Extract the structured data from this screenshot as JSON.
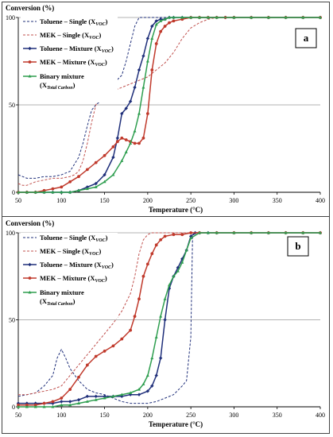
{
  "chart_data": [
    {
      "type": "line",
      "panel_label": "a",
      "ylabel": "Conversion (%)",
      "xlabel": "Temperature (°C)",
      "xlim": [
        50,
        400
      ],
      "ylim": [
        0,
        100
      ],
      "x_ticks": [
        "50",
        "100",
        "150",
        "200",
        "250",
        "300",
        "350",
        "400"
      ],
      "y_ticks": [
        "0",
        "50",
        "100"
      ],
      "grid": "horizontal at 50 and 100",
      "legend_position": "left, inside",
      "series": [
        {
          "name": "Toluene – Single (X_VOC)",
          "main": "Toluene – Single (X",
          "sub": "VOC",
          "color": "#1f2f7a",
          "dashed": true,
          "marker": false,
          "x": [
            50,
            55,
            60,
            70,
            80,
            90,
            100,
            110,
            120,
            125,
            130,
            135,
            140,
            145,
            150,
            155,
            160,
            170,
            175,
            180,
            185,
            190,
            195,
            200,
            220,
            250,
            300,
            350,
            400
          ],
          "y": [
            10,
            9,
            8,
            8,
            9,
            9,
            10,
            12,
            20,
            28,
            38,
            47,
            50,
            52,
            55,
            59,
            62,
            67,
            75,
            85,
            95,
            100,
            100,
            100,
            100,
            100,
            100,
            100,
            100
          ]
        },
        {
          "name": "MEK – Single (X_VOC)",
          "main": "MEK – Single (X",
          "sub": "VOC",
          "color": "#c0504d",
          "dashed": true,
          "marker": false,
          "x": [
            50,
            55,
            60,
            70,
            80,
            90,
            100,
            110,
            115,
            120,
            125,
            130,
            135,
            140,
            145,
            150,
            160,
            170,
            180,
            190,
            200,
            210,
            220,
            230,
            240,
            250,
            260,
            270,
            280,
            300,
            350,
            400
          ],
          "y": [
            5,
            4,
            4,
            6,
            7,
            8,
            8,
            9,
            10,
            12,
            18,
            28,
            40,
            50,
            55,
            56,
            58,
            60,
            62,
            64,
            66,
            70,
            74,
            80,
            88,
            94,
            97,
            99,
            100,
            100,
            100,
            100
          ]
        },
        {
          "name": "Toluene – Mixture (X_VOC)",
          "main": "Toluene – Mixture (X",
          "sub": "VOC",
          "color": "#1f2f7a",
          "dashed": false,
          "marker": "diamond",
          "x": [
            50,
            60,
            70,
            80,
            90,
            100,
            110,
            120,
            130,
            140,
            150,
            160,
            165,
            170,
            175,
            180,
            185,
            190,
            195,
            200,
            205,
            210,
            215,
            220,
            225,
            230,
            240,
            250,
            260,
            270,
            280,
            290,
            300,
            320,
            340,
            360,
            380,
            400
          ],
          "y": [
            0,
            0,
            0,
            0,
            0,
            0,
            0,
            1,
            3,
            5,
            10,
            20,
            31,
            45,
            48,
            52,
            60,
            70,
            78,
            88,
            95,
            98,
            99,
            99,
            100,
            100,
            100,
            100,
            100,
            100,
            100,
            100,
            100,
            100,
            100,
            100,
            100,
            100
          ]
        },
        {
          "name": "MEK – Mixture (X_VOC)",
          "main": "MEK – Mixture (X",
          "sub": "VOC",
          "color": "#c0392b",
          "dashed": false,
          "marker": "circle",
          "x": [
            50,
            60,
            70,
            80,
            90,
            100,
            110,
            120,
            130,
            140,
            150,
            160,
            165,
            170,
            175,
            180,
            185,
            190,
            195,
            200,
            205,
            210,
            215,
            220,
            225,
            230,
            240,
            250,
            260,
            270,
            280,
            290,
            300,
            320,
            340,
            360,
            380,
            400
          ],
          "y": [
            0,
            0,
            0,
            1,
            2,
            3,
            6,
            9,
            13,
            17,
            21,
            26,
            29,
            31,
            30,
            29,
            28,
            28,
            31,
            45,
            70,
            85,
            92,
            95,
            97,
            98,
            99,
            100,
            100,
            100,
            100,
            100,
            100,
            100,
            100,
            100,
            100,
            100
          ]
        },
        {
          "name": "Binary mixture (X_Total Carbon)",
          "main": "Binary mixture",
          "main2": "(X",
          "sub": "Total Carbon",
          "color": "#2e9e4f",
          "dashed": false,
          "marker": "triangle",
          "x": [
            50,
            60,
            70,
            80,
            90,
            100,
            110,
            120,
            130,
            140,
            150,
            160,
            170,
            175,
            180,
            185,
            190,
            195,
            200,
            205,
            210,
            215,
            220,
            225,
            230,
            240,
            250,
            260,
            270,
            280,
            300,
            320,
            340,
            360,
            380,
            400
          ],
          "y": [
            0,
            0,
            0,
            0,
            0,
            0,
            0,
            1,
            2,
            3,
            6,
            10,
            18,
            23,
            28,
            35,
            45,
            60,
            75,
            88,
            96,
            98,
            99,
            100,
            100,
            100,
            100,
            100,
            100,
            100,
            100,
            100,
            100,
            100,
            100,
            100
          ]
        }
      ]
    },
    {
      "type": "line",
      "panel_label": "b",
      "ylabel": "Conversion (%)",
      "xlabel": "Temperature (°C)",
      "xlim": [
        50,
        400
      ],
      "ylim": [
        0,
        100
      ],
      "x_ticks": [
        "50",
        "100",
        "150",
        "200",
        "250",
        "300",
        "350",
        "400"
      ],
      "y_ticks": [
        "0",
        "50",
        "100"
      ],
      "grid": "horizontal at 50 and 100",
      "legend_position": "left, inside",
      "series": [
        {
          "name": "Toluene – Single (X_VOC)",
          "main": "Toluene – Single (X",
          "sub": "VOC",
          "color": "#1f2f7a",
          "dashed": true,
          "marker": false,
          "x": [
            50,
            60,
            70,
            80,
            90,
            95,
            100,
            105,
            110,
            120,
            130,
            140,
            150,
            160,
            170,
            180,
            190,
            200,
            210,
            220,
            230,
            240,
            245,
            250,
            252,
            255,
            260,
            280,
            300,
            350,
            400
          ],
          "y": [
            6,
            7,
            8,
            12,
            18,
            28,
            33,
            28,
            22,
            15,
            10,
            8,
            7,
            5,
            3,
            2,
            2,
            2,
            3,
            5,
            7,
            12,
            15,
            40,
            98,
            100,
            100,
            100,
            100,
            100,
            100
          ]
        },
        {
          "name": "MEK – Single (X_VOC)",
          "main": "MEK – Single (X",
          "sub": "VOC",
          "color": "#c0504d",
          "dashed": true,
          "marker": false,
          "x": [
            50,
            60,
            70,
            80,
            90,
            100,
            110,
            120,
            130,
            140,
            150,
            160,
            170,
            180,
            185,
            190,
            195,
            200,
            205,
            210,
            220,
            230,
            250,
            300,
            350,
            400
          ],
          "y": [
            7,
            7,
            8,
            9,
            10,
            12,
            18,
            24,
            30,
            36,
            42,
            48,
            55,
            65,
            75,
            88,
            96,
            99,
            100,
            100,
            100,
            100,
            100,
            100,
            100,
            100
          ]
        },
        {
          "name": "Toluene – Mixture (X_VOC)",
          "main": "Toluene – Mixture (X",
          "sub": "VOC",
          "color": "#1f2f7a",
          "dashed": false,
          "marker": "diamond",
          "x": [
            50,
            60,
            70,
            80,
            90,
            100,
            110,
            120,
            130,
            140,
            150,
            160,
            170,
            180,
            190,
            200,
            205,
            210,
            215,
            220,
            225,
            230,
            235,
            240,
            245,
            250,
            255,
            260,
            270,
            280,
            300,
            320,
            340,
            360,
            380,
            400
          ],
          "y": [
            2,
            2,
            2,
            2,
            2,
            3,
            3,
            4,
            6,
            6,
            6,
            6,
            6,
            7,
            7,
            9,
            12,
            18,
            28,
            50,
            68,
            75,
            80,
            85,
            90,
            98,
            100,
            100,
            100,
            100,
            100,
            100,
            100,
            100,
            100,
            100
          ]
        },
        {
          "name": "MEK – Mixture (X_VOC)",
          "main": "MEK – Mixture (X",
          "sub": "VOC",
          "color": "#c0392b",
          "dashed": false,
          "marker": "circle",
          "x": [
            50,
            60,
            70,
            80,
            90,
            100,
            110,
            120,
            130,
            140,
            150,
            160,
            170,
            180,
            185,
            190,
            195,
            200,
            205,
            210,
            215,
            220,
            230,
            240,
            250,
            260,
            280,
            300,
            320,
            340,
            360,
            380,
            400
          ],
          "y": [
            1,
            1,
            1,
            2,
            3,
            5,
            10,
            17,
            24,
            29,
            32,
            35,
            39,
            44,
            52,
            62,
            75,
            82,
            88,
            93,
            96,
            98,
            99,
            99,
            100,
            100,
            100,
            100,
            100,
            100,
            100,
            100,
            100
          ]
        },
        {
          "name": "Binary mixture (X_Total Carbon)",
          "main": "Binary mixture",
          "main2": "(X",
          "sub": "Total Carbon",
          "color": "#2e9e4f",
          "dashed": false,
          "marker": "triangle",
          "x": [
            50,
            60,
            70,
            80,
            90,
            100,
            110,
            120,
            130,
            140,
            150,
            160,
            170,
            180,
            190,
            195,
            200,
            205,
            210,
            215,
            220,
            225,
            230,
            235,
            240,
            245,
            250,
            260,
            270,
            280,
            300,
            320,
            340,
            360,
            380,
            400
          ],
          "y": [
            0,
            0,
            0,
            0,
            0,
            1,
            1,
            2,
            3,
            4,
            5,
            6,
            7,
            8,
            10,
            13,
            18,
            28,
            40,
            52,
            62,
            70,
            75,
            78,
            83,
            90,
            97,
            100,
            100,
            100,
            100,
            100,
            100,
            100,
            100,
            100
          ]
        }
      ]
    }
  ]
}
